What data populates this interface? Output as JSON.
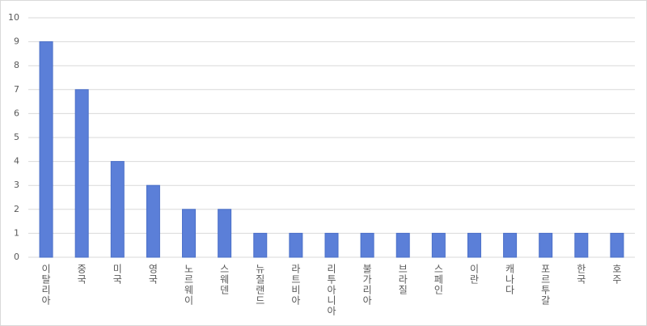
{
  "chart_data": {
    "type": "bar",
    "categories": [
      "이탈리아",
      "중국",
      "미국",
      "영국",
      "노르웨이",
      "스웨덴",
      "뉴질랜드",
      "라트비아",
      "리투아니아",
      "불가리아",
      "브라질",
      "스페인",
      "이란",
      "캐나다",
      "포르투갈",
      "한국",
      "호주"
    ],
    "values": [
      9,
      7,
      4,
      3,
      2,
      2,
      1,
      1,
      1,
      1,
      1,
      1,
      1,
      1,
      1,
      1,
      1
    ],
    "color": "#5b7fd8",
    "ylim": [
      0,
      10
    ],
    "yticks": [
      0,
      1,
      2,
      3,
      4,
      5,
      6,
      7,
      8,
      9,
      10
    ],
    "grid": true
  }
}
